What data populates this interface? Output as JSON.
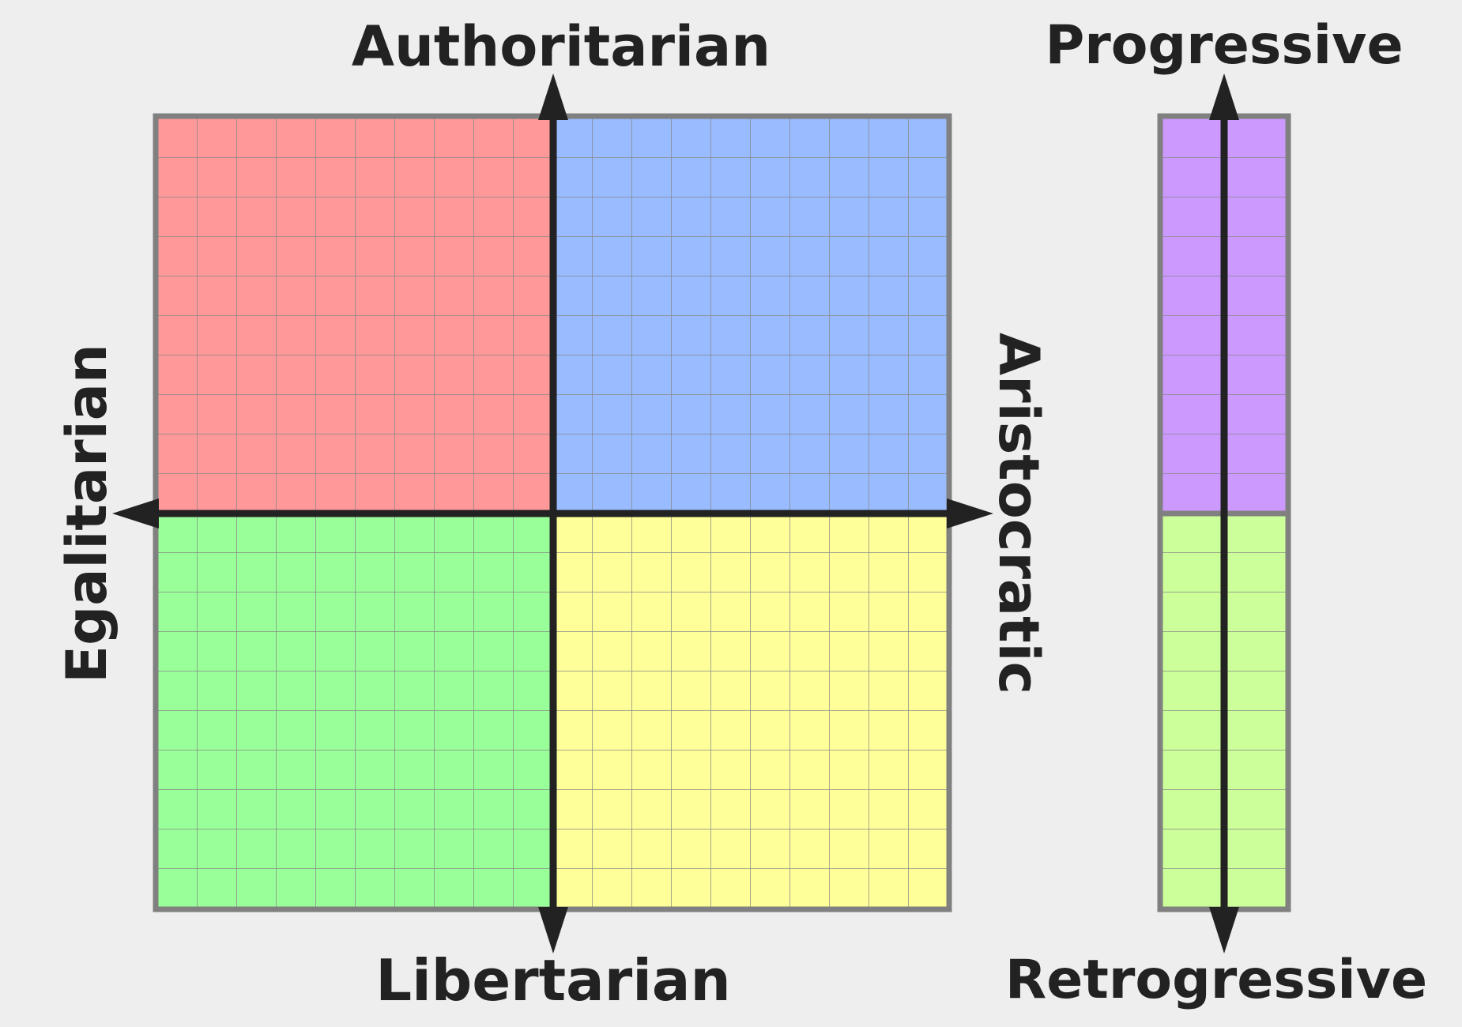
{
  "labels": {
    "top": "Authoritarian",
    "bottom": "Libertarian",
    "left": "Egalitarian",
    "right": "Aristocratic",
    "bar_top": "Progressive",
    "bar_bottom": "Retrogressive"
  },
  "colors": {
    "background": "#eeeeee",
    "top_left": "#ff9999",
    "top_right": "#99bbff",
    "bottom_left": "#99ff99",
    "bottom_right": "#ffff99",
    "bar_top": "#cc99ff",
    "bar_bottom": "#ccff99",
    "grid_line": "#888888",
    "axis": "#222222"
  },
  "grid": {
    "columns_per_half": 10,
    "rows_per_half": 10
  }
}
